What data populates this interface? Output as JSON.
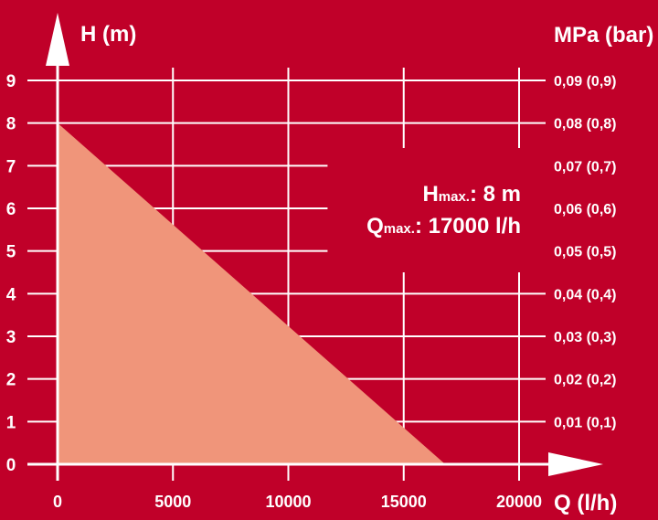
{
  "chart_data": {
    "type": "area",
    "x": [
      0,
      16800
    ],
    "y": [
      8,
      0
    ],
    "xlabel": "Q (l/h)",
    "ylabel": "H (m)",
    "ylabel_right": "MPa (bar)",
    "xlim": [
      0,
      20000
    ],
    "ylim": [
      0,
      9
    ],
    "x_ticks": [
      "0",
      "5000",
      "10000",
      "15000",
      "20000"
    ],
    "y_ticks": [
      "0",
      "1",
      "2",
      "3",
      "4",
      "5",
      "6",
      "7",
      "8",
      "9"
    ],
    "y_ticks_right": [
      "0,01 (0,1)",
      "0,02 (0,2)",
      "0,03 (0,3)",
      "0,04 (0,4)",
      "0,05 (0,5)",
      "0,06 (0,6)",
      "0,07 (0,7)",
      "0,08 (0,8)",
      "0,09 (0,9)"
    ],
    "grid": true,
    "annotations": {
      "hmax_label": "H",
      "hmax_sub": "max.",
      "hmax_value": ": 8 m",
      "qmax_label": "Q",
      "qmax_sub": "max.",
      "qmax_value": ": 17000 l/h"
    },
    "colors": {
      "background": "#c00029",
      "fill": "#f0957a",
      "grid": "#ffffff"
    }
  }
}
